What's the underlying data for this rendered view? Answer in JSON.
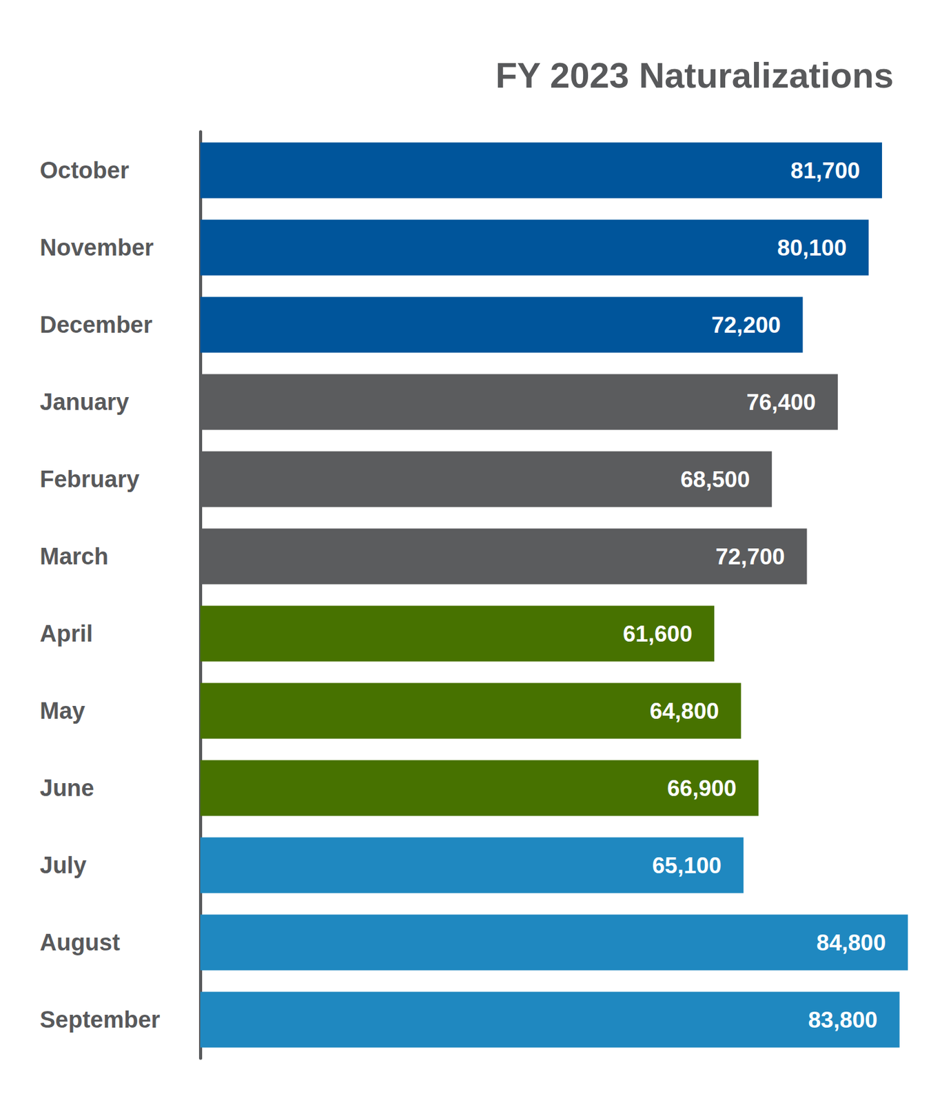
{
  "chart_data": {
    "type": "bar",
    "title": "FY 2023 Naturalizations",
    "orientation": "horizontal",
    "categories": [
      "October",
      "November",
      "December",
      "January",
      "February",
      "March",
      "April",
      "May",
      "June",
      "July",
      "August",
      "September"
    ],
    "values": [
      81700,
      80100,
      72200,
      76400,
      68500,
      72700,
      61600,
      64800,
      66900,
      65100,
      84800,
      83800
    ],
    "value_labels": [
      "81,700",
      "80,100",
      "72,200",
      "76,400",
      "68,500",
      "72,700",
      "61,600",
      "64,800",
      "66,900",
      "65,100",
      "84,800",
      "83,800"
    ],
    "colors": [
      "#00559b",
      "#00559b",
      "#00559b",
      "#5b5c5e",
      "#5b5c5e",
      "#5b5c5e",
      "#477200",
      "#477200",
      "#477200",
      "#1f88c0",
      "#1f88c0",
      "#1f88c0"
    ],
    "xlim": [
      0,
      85000
    ],
    "xticks": [
      0,
      85000
    ],
    "grid": false,
    "data_labels": true,
    "tick_labels": "y"
  }
}
